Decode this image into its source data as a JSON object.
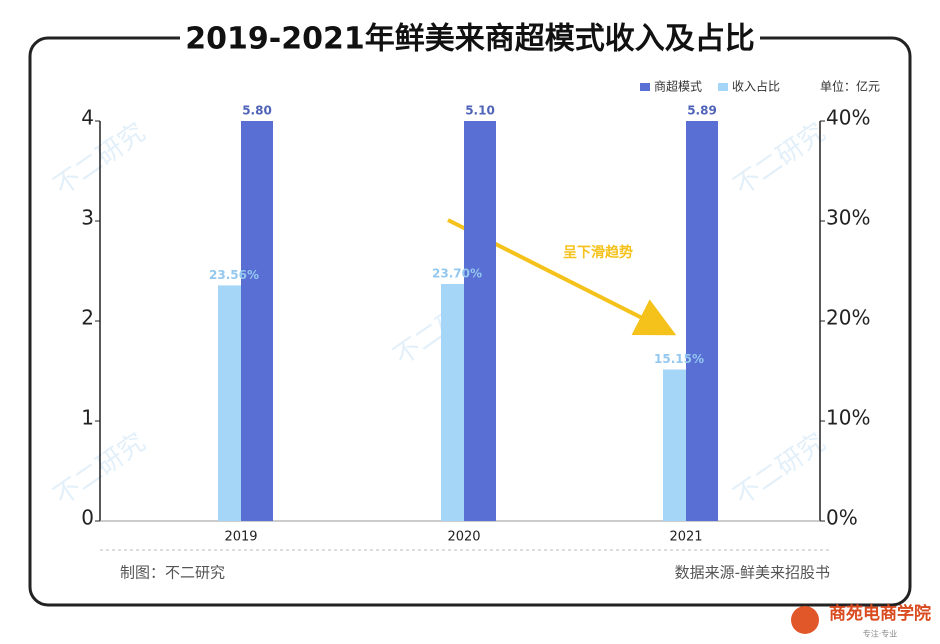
{
  "chart_data": {
    "type": "bar",
    "title": "2019-2021年鲜美来商超模式收入及占比",
    "unit": "单位：亿元",
    "categories": [
      "2019",
      "2020",
      "2021"
    ],
    "series": [
      {
        "name": "商超模式",
        "color": "#5a6fd3",
        "values": [
          5.8,
          5.1,
          5.89
        ],
        "value_labels": [
          "5.80",
          "5.10",
          "5.89"
        ],
        "label_color": "#4f63b8"
      },
      {
        "name": "收入占比",
        "color": "#a6d6f7",
        "axis": "y2",
        "values": [
          23.56,
          23.7,
          15.15
        ],
        "value_labels": [
          "23.56%",
          "23.70%",
          "15.15%"
        ],
        "label_color": "#94c8ef"
      }
    ],
    "ylim": [
      0,
      4
    ],
    "yticks": [
      0,
      1,
      2,
      3,
      4
    ],
    "y2lim": [
      0,
      40
    ],
    "y2ticks": [
      {
        "value": 0,
        "label": "0%"
      },
      {
        "value": 10,
        "label": "10%"
      },
      {
        "value": 20,
        "label": "20%"
      },
      {
        "value": 30,
        "label": "30%"
      },
      {
        "value": 40,
        "label": "40%"
      }
    ],
    "annotation": "呈下滑趋势",
    "credit": "制图：不二研究",
    "source": "数据来源-鲜美来招股书",
    "watermark": "不二研究",
    "brand": "商苑电商学院",
    "brand_tagline": "专注·专业"
  }
}
